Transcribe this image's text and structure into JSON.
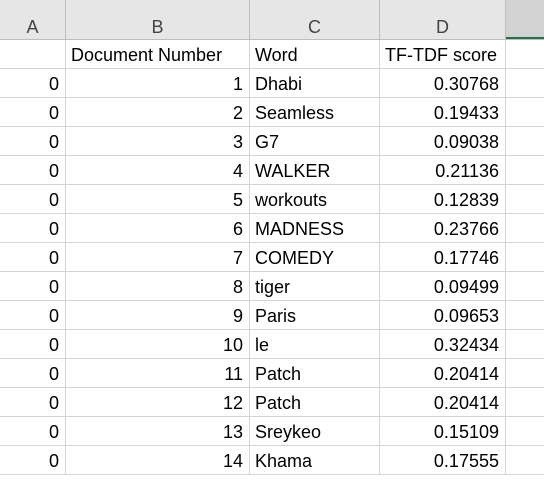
{
  "columns": [
    "A",
    "B",
    "C",
    "D"
  ],
  "header": {
    "document_number": "Document Number",
    "word": "Word",
    "score": "TF-TDF score"
  },
  "rows": [
    {
      "a": "0",
      "doc": "1",
      "word": "Dhabi",
      "score": "0.30768"
    },
    {
      "a": "0",
      "doc": "2",
      "word": "Seamless",
      "score": "0.19433"
    },
    {
      "a": "0",
      "doc": "3",
      "word": "G7",
      "score": "0.09038"
    },
    {
      "a": "0",
      "doc": "4",
      "word": "WALKER",
      "score": "0.21136"
    },
    {
      "a": "0",
      "doc": "5",
      "word": "workouts",
      "score": "0.12839"
    },
    {
      "a": "0",
      "doc": "6",
      "word": "MADNESS",
      "score": "0.23766"
    },
    {
      "a": "0",
      "doc": "7",
      "word": "COMEDY",
      "score": "0.17746"
    },
    {
      "a": "0",
      "doc": "8",
      "word": "tiger",
      "score": "0.09499"
    },
    {
      "a": "0",
      "doc": "9",
      "word": "Paris",
      "score": "0.09653"
    },
    {
      "a": "0",
      "doc": "10",
      "word": "le",
      "score": "0.32434"
    },
    {
      "a": "0",
      "doc": "11",
      "word": "Patch",
      "score": "0.20414"
    },
    {
      "a": "0",
      "doc": "12",
      "word": "Patch",
      "score": "0.20414"
    },
    {
      "a": "0",
      "doc": "13",
      "word": "Sreykeo",
      "score": "0.15109"
    },
    {
      "a": "0",
      "doc": "14",
      "word": "Khama",
      "score": "0.17555"
    }
  ],
  "colors": {
    "header_bg": "#e6e6e6",
    "selected_accent": "#217346",
    "gridline": "#d4d4d4"
  }
}
